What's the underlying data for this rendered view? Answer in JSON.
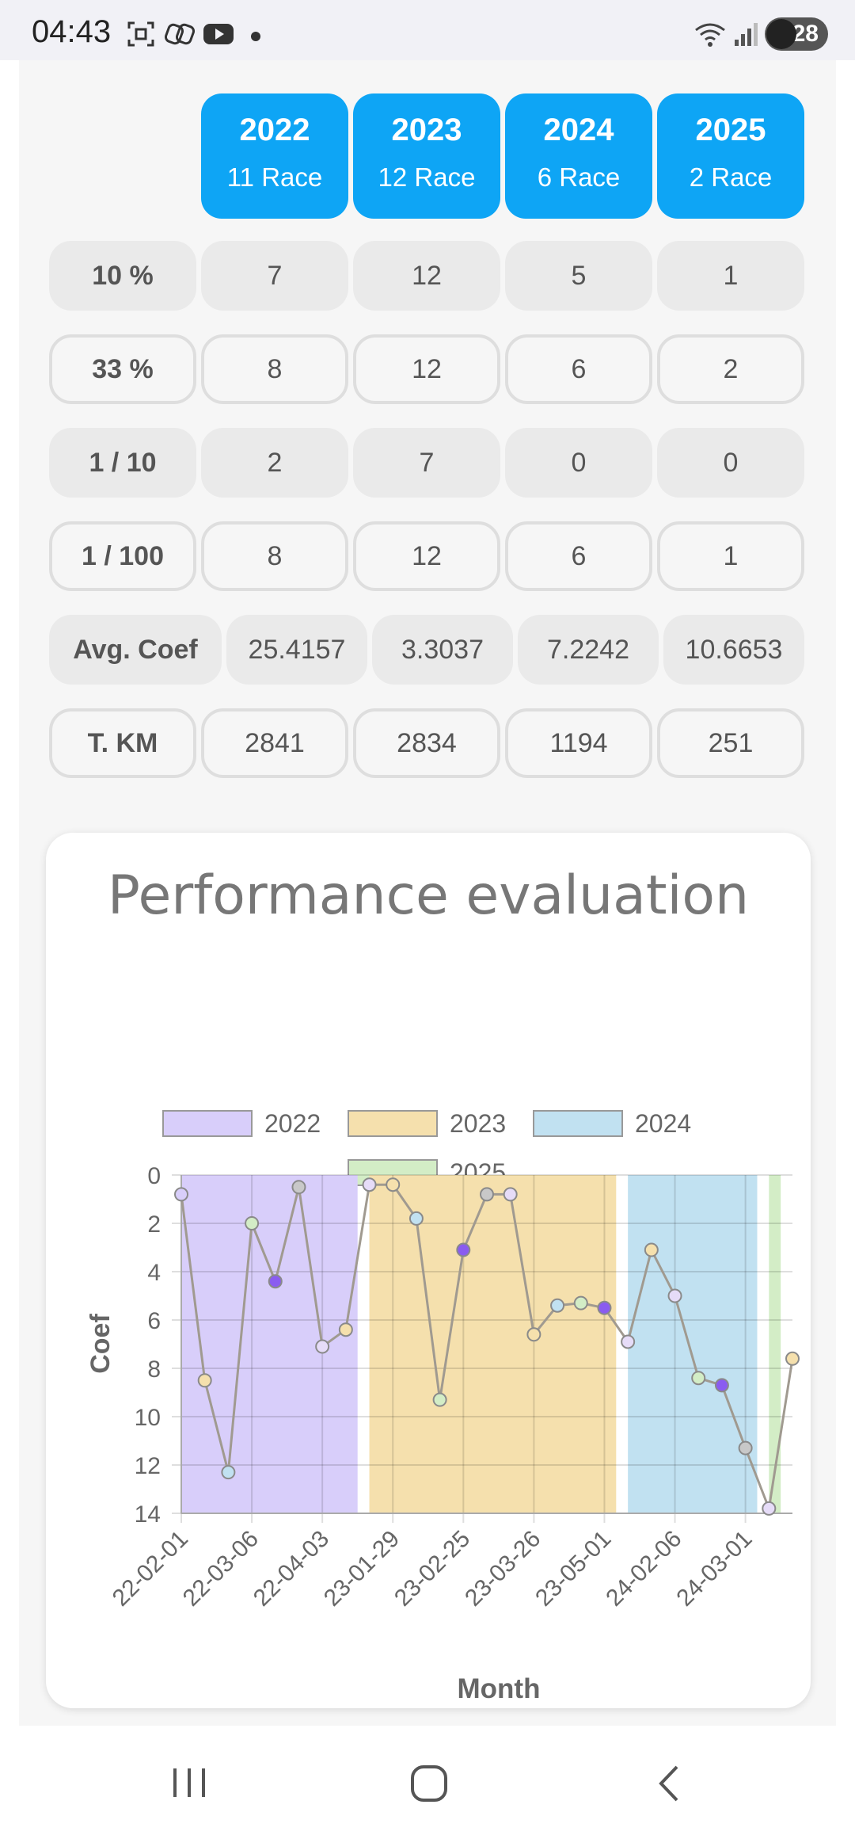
{
  "status_bar": {
    "time": "04:43",
    "battery": "28",
    "icons": [
      "screenshot-icon",
      "link-icon",
      "youtube-icon",
      "dot-icon",
      "wifi-icon",
      "signal-icon",
      "battery-icon"
    ]
  },
  "years": [
    {
      "year": "2022",
      "races": "11 Race"
    },
    {
      "year": "2023",
      "races": "12 Race"
    },
    {
      "year": "2024",
      "races": "6 Race"
    },
    {
      "year": "2025",
      "races": "2 Race"
    }
  ],
  "rows": [
    {
      "label": "10 %",
      "style": "filled",
      "values": [
        "7",
        "12",
        "5",
        "1"
      ]
    },
    {
      "label": "33 %",
      "style": "outlined",
      "values": [
        "8",
        "12",
        "6",
        "2"
      ]
    },
    {
      "label": "1 / 10",
      "style": "filled",
      "values": [
        "2",
        "7",
        "0",
        "0"
      ]
    },
    {
      "label": "1 / 100",
      "style": "outlined",
      "values": [
        "8",
        "12",
        "6",
        "1"
      ]
    },
    {
      "label": "Avg. Coef",
      "style": "filled",
      "values": [
        "25.4157",
        "3.3037",
        "7.2242",
        "10.6653"
      ]
    },
    {
      "label": "T. KM",
      "style": "outlined",
      "values": [
        "2841",
        "2834",
        "1194",
        "251"
      ]
    }
  ],
  "colors": {
    "accent": "#0ea5f5",
    "band_2022": "#d8cefa",
    "band_2023": "#f5e0ad",
    "band_2024": "#c1e1f1",
    "band_2025": "#d3edc6",
    "line": "#a09a90"
  },
  "chart_data": {
    "type": "line",
    "title": "Performance evaluation",
    "xlabel": "Month",
    "ylabel": "Coef",
    "ylim": [
      0,
      14
    ],
    "y_reversed": true,
    "yticks": [
      0,
      2,
      4,
      6,
      8,
      10,
      12,
      14
    ],
    "xtick_labels": [
      "22-02-01",
      "22-03-06",
      "22-04-03",
      "23-01-29",
      "23-02-25",
      "23-03-26",
      "23-05-01",
      "24-02-06",
      "24-03-01"
    ],
    "legend": [
      "2022",
      "2023",
      "2024",
      "2025"
    ],
    "legend_position": "top",
    "grid": true,
    "bands": [
      {
        "name": "2022",
        "start": 0,
        "end": 7.5
      },
      {
        "name": "2023",
        "start": 8.0,
        "end": 18.5
      },
      {
        "name": "2024",
        "start": 19.0,
        "end": 24.5
      },
      {
        "name": "2025",
        "start": 25.0,
        "end": 25.5
      }
    ],
    "points": [
      {
        "x": 0,
        "y": 0.8,
        "color": "#d8cefa"
      },
      {
        "x": 1,
        "y": 8.5,
        "color": "#f5e0ad"
      },
      {
        "x": 2,
        "y": 12.3,
        "color": "#c1e1f1"
      },
      {
        "x": 3,
        "y": 2.0,
        "color": "#d3edc6"
      },
      {
        "x": 4,
        "y": 4.4,
        "color": "#8a5cf0"
      },
      {
        "x": 5,
        "y": 0.5,
        "color": "#c8c8c8"
      },
      {
        "x": 6,
        "y": 7.1,
        "color": "#e6dcf8"
      },
      {
        "x": 7,
        "y": 6.4,
        "color": "#f5e0ad"
      },
      {
        "x": 8,
        "y": 0.4,
        "color": "#e6dcf8"
      },
      {
        "x": 9,
        "y": 0.4,
        "color": "#f5e0ad"
      },
      {
        "x": 10,
        "y": 1.8,
        "color": "#c1e1f1"
      },
      {
        "x": 11,
        "y": 9.3,
        "color": "#d3edc6"
      },
      {
        "x": 12,
        "y": 3.1,
        "color": "#8a5cf0"
      },
      {
        "x": 13,
        "y": 0.8,
        "color": "#c8c8c8"
      },
      {
        "x": 14,
        "y": 0.8,
        "color": "#e6dcf8"
      },
      {
        "x": 15,
        "y": 6.6,
        "color": "#f5e0ad"
      },
      {
        "x": 16,
        "y": 5.4,
        "color": "#c1e1f1"
      },
      {
        "x": 17,
        "y": 5.3,
        "color": "#d3edc6"
      },
      {
        "x": 18,
        "y": 5.5,
        "color": "#8a5cf0"
      },
      {
        "x": 19,
        "y": 6.9,
        "color": "#e6dcf8"
      },
      {
        "x": 20,
        "y": 3.1,
        "color": "#f5e0ad"
      },
      {
        "x": 21,
        "y": 5.0,
        "color": "#e6dcf8"
      },
      {
        "x": 22,
        "y": 8.4,
        "color": "#d3edc6"
      },
      {
        "x": 23,
        "y": 8.7,
        "color": "#8a5cf0"
      },
      {
        "x": 24,
        "y": 11.3,
        "color": "#c8c8c8"
      },
      {
        "x": 25,
        "y": 13.8,
        "color": "#e6dcf8"
      },
      {
        "x": 26,
        "y": 7.6,
        "color": "#f5e0ad"
      }
    ]
  },
  "nav": {
    "icons": [
      "recent-apps-icon",
      "home-icon",
      "back-icon"
    ]
  }
}
